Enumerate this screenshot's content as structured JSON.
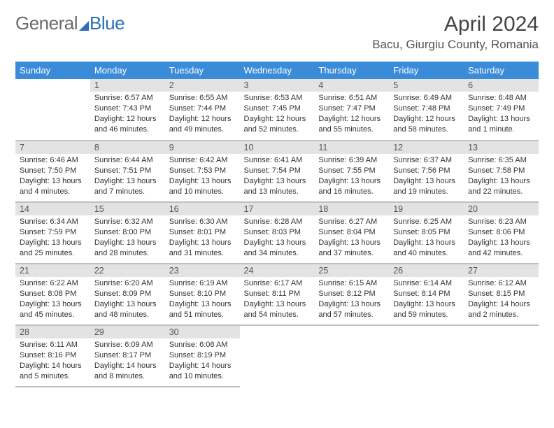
{
  "logo": {
    "part1": "General",
    "part2": "Blue"
  },
  "title": "April 2024",
  "location": "Bacu, Giurgiu County, Romania",
  "colors": {
    "header_bg": "#3a8bd8",
    "daynum_bg": "#e3e3e3",
    "rule": "#bfbfbf",
    "logo_blue": "#2c6fb5"
  },
  "weekdays": [
    "Sunday",
    "Monday",
    "Tuesday",
    "Wednesday",
    "Thursday",
    "Friday",
    "Saturday"
  ],
  "weeks": [
    [
      null,
      {
        "n": "1",
        "sr": "Sunrise: 6:57 AM",
        "ss": "Sunset: 7:43 PM",
        "dl": "Daylight: 12 hours and 46 minutes."
      },
      {
        "n": "2",
        "sr": "Sunrise: 6:55 AM",
        "ss": "Sunset: 7:44 PM",
        "dl": "Daylight: 12 hours and 49 minutes."
      },
      {
        "n": "3",
        "sr": "Sunrise: 6:53 AM",
        "ss": "Sunset: 7:45 PM",
        "dl": "Daylight: 12 hours and 52 minutes."
      },
      {
        "n": "4",
        "sr": "Sunrise: 6:51 AM",
        "ss": "Sunset: 7:47 PM",
        "dl": "Daylight: 12 hours and 55 minutes."
      },
      {
        "n": "5",
        "sr": "Sunrise: 6:49 AM",
        "ss": "Sunset: 7:48 PM",
        "dl": "Daylight: 12 hours and 58 minutes."
      },
      {
        "n": "6",
        "sr": "Sunrise: 6:48 AM",
        "ss": "Sunset: 7:49 PM",
        "dl": "Daylight: 13 hours and 1 minute."
      }
    ],
    [
      {
        "n": "7",
        "sr": "Sunrise: 6:46 AM",
        "ss": "Sunset: 7:50 PM",
        "dl": "Daylight: 13 hours and 4 minutes."
      },
      {
        "n": "8",
        "sr": "Sunrise: 6:44 AM",
        "ss": "Sunset: 7:51 PM",
        "dl": "Daylight: 13 hours and 7 minutes."
      },
      {
        "n": "9",
        "sr": "Sunrise: 6:42 AM",
        "ss": "Sunset: 7:53 PM",
        "dl": "Daylight: 13 hours and 10 minutes."
      },
      {
        "n": "10",
        "sr": "Sunrise: 6:41 AM",
        "ss": "Sunset: 7:54 PM",
        "dl": "Daylight: 13 hours and 13 minutes."
      },
      {
        "n": "11",
        "sr": "Sunrise: 6:39 AM",
        "ss": "Sunset: 7:55 PM",
        "dl": "Daylight: 13 hours and 16 minutes."
      },
      {
        "n": "12",
        "sr": "Sunrise: 6:37 AM",
        "ss": "Sunset: 7:56 PM",
        "dl": "Daylight: 13 hours and 19 minutes."
      },
      {
        "n": "13",
        "sr": "Sunrise: 6:35 AM",
        "ss": "Sunset: 7:58 PM",
        "dl": "Daylight: 13 hours and 22 minutes."
      }
    ],
    [
      {
        "n": "14",
        "sr": "Sunrise: 6:34 AM",
        "ss": "Sunset: 7:59 PM",
        "dl": "Daylight: 13 hours and 25 minutes."
      },
      {
        "n": "15",
        "sr": "Sunrise: 6:32 AM",
        "ss": "Sunset: 8:00 PM",
        "dl": "Daylight: 13 hours and 28 minutes."
      },
      {
        "n": "16",
        "sr": "Sunrise: 6:30 AM",
        "ss": "Sunset: 8:01 PM",
        "dl": "Daylight: 13 hours and 31 minutes."
      },
      {
        "n": "17",
        "sr": "Sunrise: 6:28 AM",
        "ss": "Sunset: 8:03 PM",
        "dl": "Daylight: 13 hours and 34 minutes."
      },
      {
        "n": "18",
        "sr": "Sunrise: 6:27 AM",
        "ss": "Sunset: 8:04 PM",
        "dl": "Daylight: 13 hours and 37 minutes."
      },
      {
        "n": "19",
        "sr": "Sunrise: 6:25 AM",
        "ss": "Sunset: 8:05 PM",
        "dl": "Daylight: 13 hours and 40 minutes."
      },
      {
        "n": "20",
        "sr": "Sunrise: 6:23 AM",
        "ss": "Sunset: 8:06 PM",
        "dl": "Daylight: 13 hours and 42 minutes."
      }
    ],
    [
      {
        "n": "21",
        "sr": "Sunrise: 6:22 AM",
        "ss": "Sunset: 8:08 PM",
        "dl": "Daylight: 13 hours and 45 minutes."
      },
      {
        "n": "22",
        "sr": "Sunrise: 6:20 AM",
        "ss": "Sunset: 8:09 PM",
        "dl": "Daylight: 13 hours and 48 minutes."
      },
      {
        "n": "23",
        "sr": "Sunrise: 6:19 AM",
        "ss": "Sunset: 8:10 PM",
        "dl": "Daylight: 13 hours and 51 minutes."
      },
      {
        "n": "24",
        "sr": "Sunrise: 6:17 AM",
        "ss": "Sunset: 8:11 PM",
        "dl": "Daylight: 13 hours and 54 minutes."
      },
      {
        "n": "25",
        "sr": "Sunrise: 6:15 AM",
        "ss": "Sunset: 8:12 PM",
        "dl": "Daylight: 13 hours and 57 minutes."
      },
      {
        "n": "26",
        "sr": "Sunrise: 6:14 AM",
        "ss": "Sunset: 8:14 PM",
        "dl": "Daylight: 13 hours and 59 minutes."
      },
      {
        "n": "27",
        "sr": "Sunrise: 6:12 AM",
        "ss": "Sunset: 8:15 PM",
        "dl": "Daylight: 14 hours and 2 minutes."
      }
    ],
    [
      {
        "n": "28",
        "sr": "Sunrise: 6:11 AM",
        "ss": "Sunset: 8:16 PM",
        "dl": "Daylight: 14 hours and 5 minutes."
      },
      {
        "n": "29",
        "sr": "Sunrise: 6:09 AM",
        "ss": "Sunset: 8:17 PM",
        "dl": "Daylight: 14 hours and 8 minutes."
      },
      {
        "n": "30",
        "sr": "Sunrise: 6:08 AM",
        "ss": "Sunset: 8:19 PM",
        "dl": "Daylight: 14 hours and 10 minutes."
      },
      null,
      null,
      null,
      null
    ]
  ]
}
